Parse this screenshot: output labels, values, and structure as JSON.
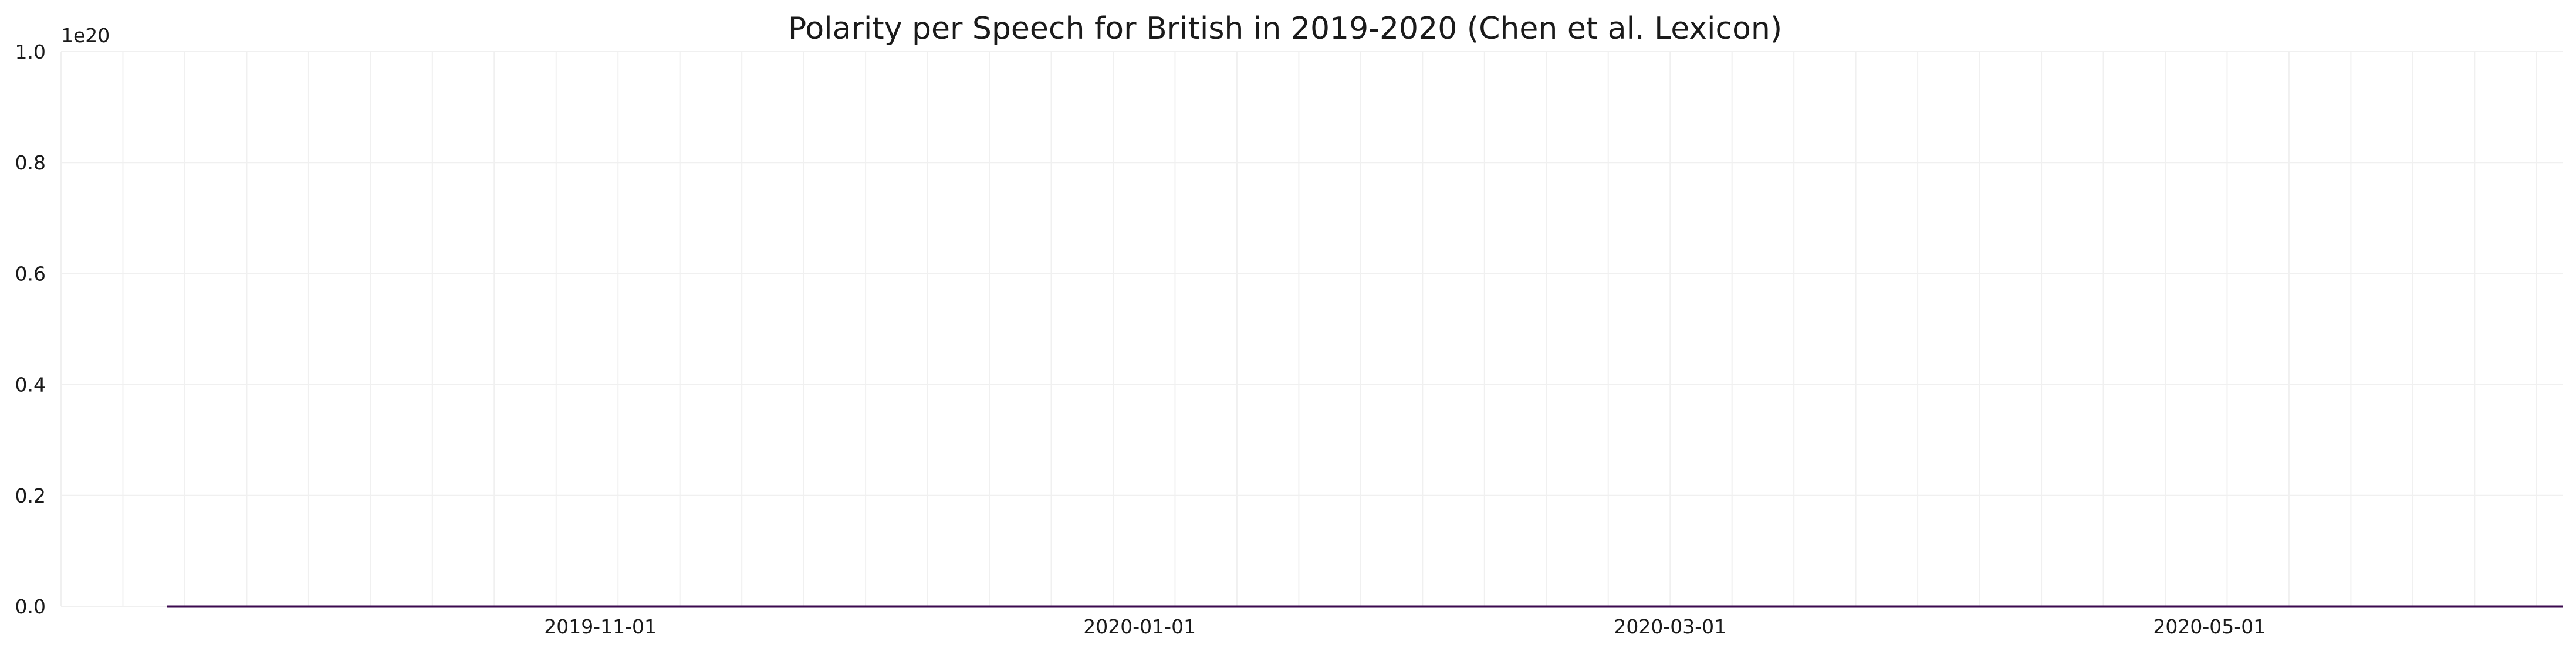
{
  "chart_data": {
    "type": "line",
    "title": "Polarity per Speech for British in 2019-2020 (Chen et al. Lexicon)",
    "xlabel": "",
    "ylabel": "",
    "y_scale_note": "1e20",
    "ylim": [
      0.0,
      1.0
    ],
    "y_ticks": [
      "0.0",
      "0.2",
      "0.4",
      "0.6",
      "0.8",
      "1.0"
    ],
    "x_tick_labels": [
      {
        "date": "2019-11-01",
        "label": "2019-11-01"
      },
      {
        "date": "2020-01-01",
        "label": "2020-01-01"
      },
      {
        "date": "2020-03-01",
        "label": "2020-03-01"
      },
      {
        "date": "2020-05-01",
        "label": "2020-05-01"
      }
    ],
    "xlim": [
      "2019-09-01",
      "2020-06-10"
    ],
    "grid": true,
    "grid_color": "#f0f0f0",
    "line_color": "#3b0a4f",
    "series": [
      {
        "x": [
          "2019-09-13",
          "2020-06-10"
        ],
        "values": [
          0.0,
          0.0
        ]
      }
    ]
  }
}
